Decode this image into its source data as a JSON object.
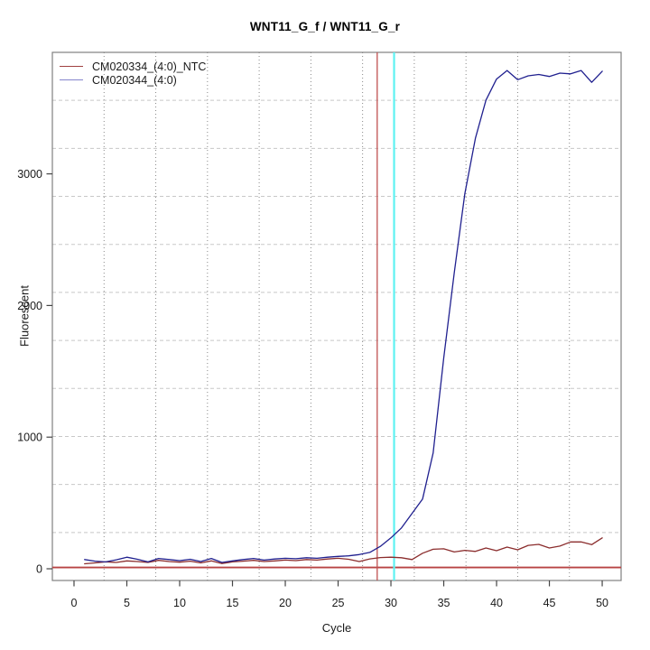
{
  "page": {
    "background": "#ffffff"
  },
  "chart": {
    "title": "WNT11_G_f / WNT11_G_r",
    "xlabel": "Cycle",
    "ylabel": "Fluorescent",
    "legend": [
      {
        "label": "CM020334_(4:0)_NTC",
        "swatch_color": "#a04040"
      },
      {
        "label": "CM020344_(4:0)",
        "swatch_color": "#8585cc"
      }
    ]
  },
  "chart_data": {
    "type": "line",
    "title": "WNT11_G_f / WNT11_G_r",
    "xlabel": "Cycle",
    "ylabel": "Fluorescent",
    "xlim": [
      -2.05,
      51.79
    ],
    "ylim": [
      -89,
      3923
    ],
    "x_ticks": [
      0,
      5,
      10,
      15,
      20,
      25,
      30,
      35,
      40,
      45,
      50
    ],
    "y_ticks": [
      0,
      1000,
      2000,
      3000
    ],
    "grid": {
      "nx": 11,
      "ny": 11,
      "v_style": "dotted",
      "h_style": "dashed",
      "v_color": "#888888",
      "h_color": "#c8c8c8"
    },
    "box_color": "#808080",
    "x": [
      1,
      2,
      3,
      4,
      5,
      6,
      7,
      8,
      9,
      10,
      11,
      12,
      13,
      14,
      15,
      16,
      17,
      18,
      19,
      20,
      21,
      22,
      23,
      24,
      25,
      26,
      27,
      28,
      29,
      30,
      31,
      32,
      33,
      34,
      35,
      36,
      37,
      38,
      39,
      40,
      41,
      42,
      43,
      44,
      45,
      46,
      47,
      48,
      49,
      50
    ],
    "series": [
      {
        "name": "CM020334_(4:0)_NTC",
        "color": "#8b2d2d",
        "values": [
          38,
          45,
          52,
          48,
          60,
          55,
          48,
          64,
          55,
          50,
          58,
          45,
          60,
          40,
          52,
          58,
          64,
          55,
          60,
          66,
          62,
          70,
          66,
          74,
          80,
          72,
          55,
          75,
          85,
          88,
          84,
          70,
          118,
          148,
          152,
          128,
          140,
          132,
          158,
          137,
          165,
          144,
          178,
          185,
          158,
          172,
          204,
          204,
          183,
          235
        ]
      },
      {
        "name": "CM020344_(4:0)",
        "color": "#20208f",
        "values": [
          70,
          58,
          52,
          68,
          88,
          72,
          52,
          78,
          70,
          62,
          72,
          55,
          78,
          48,
          60,
          70,
          78,
          66,
          74,
          80,
          76,
          84,
          80,
          88,
          94,
          98,
          108,
          124,
          170,
          235,
          310,
          420,
          530,
          880,
          1600,
          2250,
          2850,
          3270,
          3560,
          3720,
          3785,
          3715,
          3745,
          3755,
          3740,
          3765,
          3760,
          3785,
          3695,
          3780
        ]
      }
    ],
    "threshold_line": {
      "value": 10,
      "color": "#b84444",
      "width": 1.8
    },
    "vlines": [
      {
        "cycle": 28.7,
        "color": "#c05050",
        "width": 1.3
      },
      {
        "cycle": 30.3,
        "color": "#5ef2f2",
        "width": 2.2
      }
    ]
  }
}
